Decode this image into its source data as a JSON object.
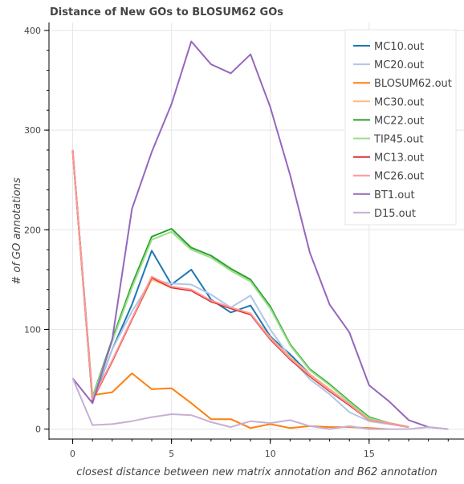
{
  "chart_data": {
    "type": "line",
    "title": "Distance of New GOs to BLOSUM62 GOs",
    "xlabel": "closest distance between new matrix annotation and B62 annotation",
    "ylabel": "# of GO annotations",
    "xlim": [
      -1.2,
      19.8
    ],
    "ylim": [
      -10,
      408
    ],
    "xticks": [
      0,
      5,
      10,
      15
    ],
    "yticks": [
      0,
      100,
      200,
      300,
      400
    ],
    "grid": true,
    "legend_position": "top-right",
    "series": [
      {
        "name": "MC10.out",
        "color": "#1f77b4",
        "x": [
          0,
          1,
          2,
          3,
          4,
          5,
          6,
          7,
          8,
          9,
          10,
          11,
          12,
          13,
          14,
          15,
          16,
          17
        ],
        "y": [
          280,
          28,
          80,
          125,
          179,
          145,
          160,
          130,
          117,
          124,
          93,
          75,
          55,
          40,
          25,
          9,
          6,
          2
        ]
      },
      {
        "name": "MC20.out",
        "color": "#aec7e8",
        "x": [
          0,
          1,
          2,
          3,
          4,
          5,
          6,
          7,
          8,
          9,
          10,
          11,
          12,
          13,
          14,
          15,
          16,
          17
        ],
        "y": [
          280,
          30,
          80,
          118,
          150,
          146,
          145,
          135,
          122,
          134,
          100,
          72,
          50,
          35,
          17,
          8,
          5,
          2
        ]
      },
      {
        "name": "BLOSUM62.out",
        "color": "#ff7f0e",
        "x": [
          1,
          2,
          3,
          4,
          5,
          6,
          7,
          8,
          9,
          10,
          11,
          12,
          13,
          14,
          15,
          16
        ],
        "y": [
          34,
          37,
          56,
          40,
          41,
          26,
          10,
          10,
          1,
          5,
          1,
          3,
          2,
          2,
          1,
          0
        ]
      },
      {
        "name": "MC30.out",
        "color": "#ffbb78",
        "x": [
          0,
          1,
          2,
          3,
          4,
          5,
          6,
          7,
          8,
          9,
          10,
          11,
          12,
          13,
          14,
          15,
          16,
          17
        ],
        "y": [
          280,
          30,
          68,
          110,
          150,
          142,
          139,
          128,
          122,
          116,
          92,
          72,
          55,
          40,
          25,
          10,
          6,
          2
        ]
      },
      {
        "name": "MC22.out",
        "color": "#2ca02c",
        "x": [
          0,
          1,
          2,
          3,
          4,
          5,
          6,
          7,
          8,
          9,
          10,
          11,
          12,
          13,
          14,
          15,
          16,
          17
        ],
        "y": [
          280,
          32,
          90,
          145,
          193,
          201,
          182,
          174,
          161,
          150,
          123,
          85,
          60,
          45,
          28,
          12,
          6,
          2
        ]
      },
      {
        "name": "TIP45.out",
        "color": "#98df8a",
        "x": [
          0,
          1,
          2,
          3,
          4,
          5,
          6,
          7,
          8,
          9,
          10,
          11,
          12,
          13,
          14,
          15,
          16,
          17
        ],
        "y": [
          280,
          31,
          88,
          142,
          190,
          198,
          180,
          172,
          159,
          148,
          121,
          84,
          59,
          44,
          27,
          11,
          6,
          2
        ]
      },
      {
        "name": "MC13.out",
        "color": "#d62728",
        "x": [
          0,
          1,
          2,
          3,
          4,
          5,
          6,
          7,
          8,
          9,
          10,
          11,
          12,
          13,
          14,
          15,
          16,
          17
        ],
        "y": [
          280,
          29,
          68,
          110,
          152,
          142,
          139,
          128,
          121,
          115,
          90,
          70,
          53,
          38,
          24,
          9,
          6,
          2
        ]
      },
      {
        "name": "MC26.out",
        "color": "#ff9896",
        "x": [
          0,
          1,
          2,
          3,
          4,
          5,
          6,
          7,
          8,
          9,
          10,
          11,
          12,
          13,
          14,
          15,
          16,
          17
        ],
        "y": [
          280,
          30,
          69,
          111,
          153,
          143,
          140,
          129,
          122,
          116,
          91,
          71,
          54,
          39,
          25,
          9,
          6,
          2
        ]
      },
      {
        "name": "BT1.out",
        "color": "#9467bd",
        "x": [
          0,
          1,
          2,
          3,
          4,
          5,
          6,
          7,
          8,
          9,
          10,
          11,
          12,
          13,
          14,
          15,
          16,
          17,
          18,
          19
        ],
        "y": [
          51,
          26,
          90,
          221,
          278,
          326,
          389,
          366,
          357,
          376,
          323,
          255,
          177,
          125,
          97,
          44,
          28,
          9,
          2,
          0
        ]
      },
      {
        "name": "D15.out",
        "color": "#c5b0d5",
        "x": [
          0,
          1,
          2,
          3,
          4,
          5,
          6,
          7,
          8,
          9,
          10,
          11,
          12,
          13,
          14,
          15,
          16,
          17,
          18,
          19
        ],
        "y": [
          51,
          4,
          5,
          8,
          12,
          15,
          14,
          7,
          2,
          8,
          6,
          9,
          3,
          0,
          3,
          0,
          0,
          0,
          2,
          0
        ]
      }
    ]
  }
}
